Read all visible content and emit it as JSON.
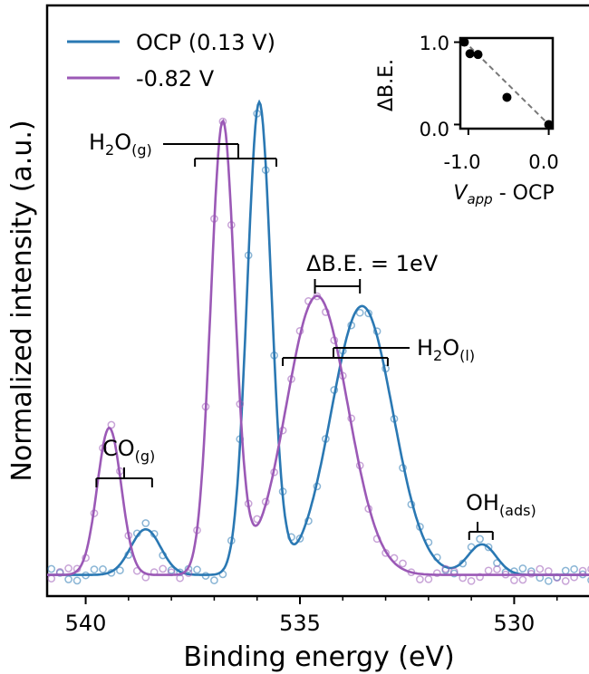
{
  "chart_data": {
    "type": "line",
    "xlabel": "Binding energy (eV)",
    "ylabel": "Normalized intensity (a.u.)",
    "xlim": [
      540.9,
      528.0
    ],
    "x_inverted": true,
    "xticks": [
      "540",
      "535",
      "530"
    ],
    "legend": {
      "placement": "top-left"
    },
    "colors": {
      "ocp": "#2a78b3",
      "neg": "#9b59b6"
    },
    "series": [
      {
        "name": "OCP (0.13 V)",
        "color": "#2a78b3",
        "peaks": [
          {
            "center": 538.6,
            "height": 0.09,
            "width": 0.35
          },
          {
            "center": 535.95,
            "height": 0.93,
            "width": 0.28
          },
          {
            "center": 533.55,
            "height": 0.53,
            "width": 0.72
          },
          {
            "center": 530.75,
            "height": 0.06,
            "width": 0.33
          }
        ],
        "baseline": 0.006
      },
      {
        "name": "-0.82 V",
        "color": "#9b59b6",
        "peaks": [
          {
            "center": 539.45,
            "height": 0.29,
            "width": 0.28
          },
          {
            "center": 536.8,
            "height": 0.89,
            "width": 0.28
          },
          {
            "center": 534.6,
            "height": 0.55,
            "width": 0.72
          }
        ],
        "baseline": 0.006
      }
    ],
    "annotations": {
      "h2o_g": {
        "main": "H",
        "sub1": "2",
        "mid": "O",
        "sub2": "(g)"
      },
      "delta_be": "ΔB.E. = 1eV",
      "h2o_l": {
        "main": "H",
        "sub1": "2",
        "mid": "O",
        "sub2": "(l)"
      },
      "co_g": {
        "main": "CO",
        "sub": "(g)"
      },
      "oh_ads": {
        "main": "OH",
        "sub": "(ads)"
      }
    },
    "inset": {
      "type": "scatter",
      "xlabel_main": "V",
      "xlabel_sub": "app",
      "xlabel_rest": " - OCP",
      "ylabel": "ΔB.E.",
      "xlim": [
        -1.1,
        0.05
      ],
      "ylim": [
        -0.05,
        1.05
      ],
      "xticks": [
        "-1.0",
        "0.0"
      ],
      "yticks": [
        "0.0",
        "1.0"
      ],
      "points": [
        {
          "x": -1.05,
          "y": 1.0
        },
        {
          "x": -0.98,
          "y": 0.86
        },
        {
          "x": -0.88,
          "y": 0.85
        },
        {
          "x": -0.52,
          "y": 0.33
        },
        {
          "x": 0.0,
          "y": 0.0
        }
      ],
      "fit_line": [
        [
          -1.06,
          1.02
        ],
        [
          0.0,
          0.0
        ]
      ]
    }
  }
}
